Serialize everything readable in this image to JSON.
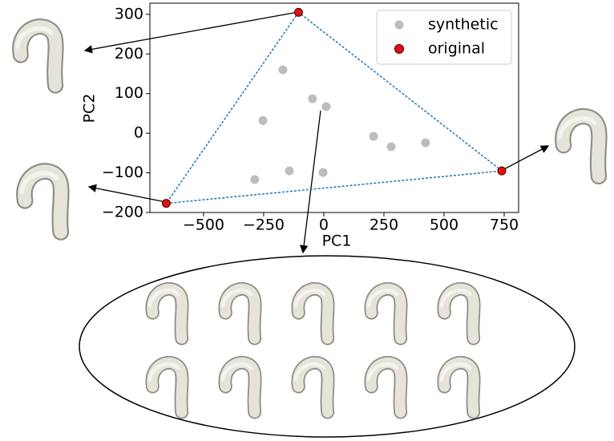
{
  "chart_data": {
    "type": "scatter",
    "xlabel": "PC1",
    "ylabel": "PC2",
    "xlim": [
      -723,
      810
    ],
    "ylim": [
      -200,
      328
    ],
    "xticks": [
      {
        "value": -500,
        "label": "−500"
      },
      {
        "value": -250,
        "label": "−250"
      },
      0,
      250,
      500,
      750
    ],
    "yticks": [
      {
        "value": -200,
        "label": "−200"
      },
      {
        "value": -100,
        "label": "−100"
      },
      0,
      100,
      200,
      300
    ],
    "legend": "upper right",
    "series": [
      {
        "name": "synthetic",
        "color": "#bdbdbd",
        "x": [
          -170,
          -253,
          -47,
          10,
          -287,
          -143,
          -3,
          207,
          280,
          423
        ],
        "y": [
          160,
          32,
          87,
          67,
          -117,
          -95,
          -99,
          -8,
          -34,
          -24
        ]
      },
      {
        "name": "original",
        "color": "#e3100f",
        "x": [
          -105,
          -655,
          740
        ],
        "y": [
          305,
          -177,
          -95
        ]
      }
    ]
  }
}
